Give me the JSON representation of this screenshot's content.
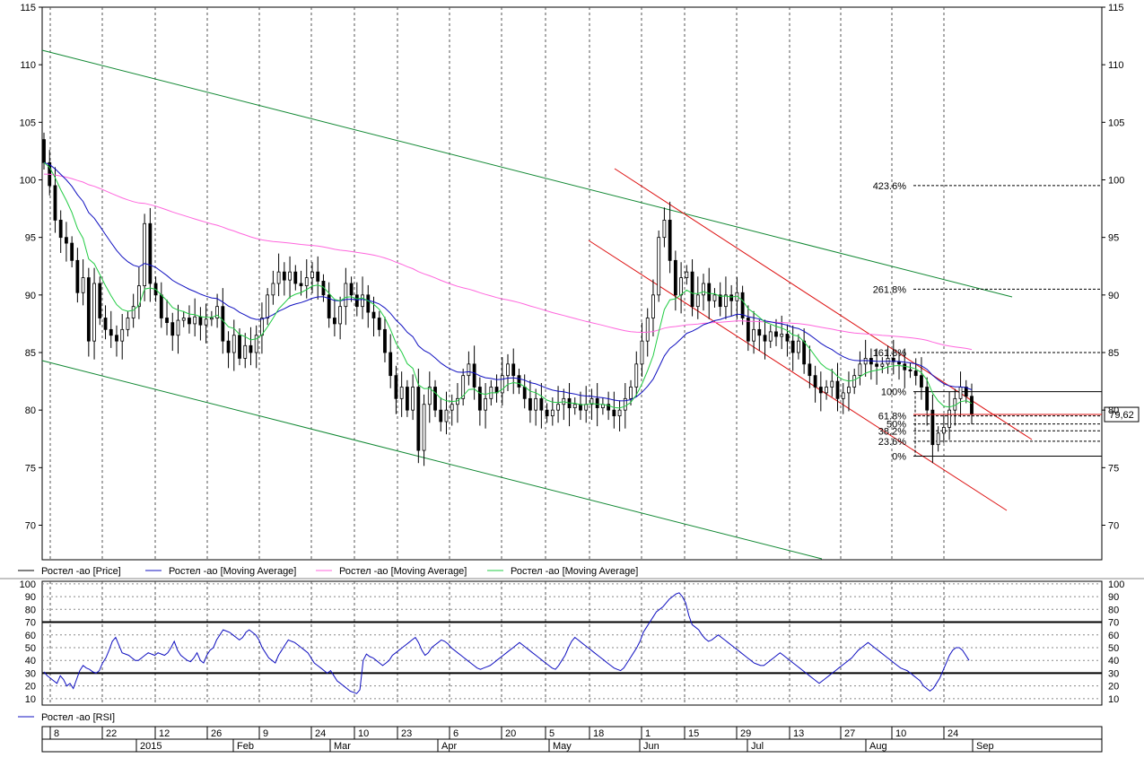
{
  "chart_data": [
    {
      "type": "candlestick",
      "title": "",
      "ylim": [
        67,
        115
      ],
      "y_ticks": [
        70,
        75,
        80,
        85,
        90,
        95,
        100,
        105,
        110,
        115
      ],
      "last_price_label": "79,62",
      "x_day_labels": [
        "8",
        "22",
        "12",
        "26",
        "9",
        "24",
        "10",
        "23",
        "6",
        "20",
        "5",
        "18",
        "1",
        "15",
        "29",
        "13",
        "27",
        "10",
        "24"
      ],
      "x_month_labels": [
        "2015",
        "Feb",
        "Mar",
        "Apr",
        "May",
        "Jun",
        "Jul",
        "Aug",
        "Sep"
      ],
      "legend": [
        {
          "name": "Ростел -ао [Price]",
          "color": "#000000"
        },
        {
          "name": "Ростел -ао [Moving Average]",
          "color": "#1010c0"
        },
        {
          "name": "Ростел -ао [Moving Average]",
          "color": "#ff66dd"
        },
        {
          "name": "Ростел -ао [Moving Average]",
          "color": "#22cc44"
        }
      ],
      "price_closes": [
        101.5,
        99.5,
        96.5,
        95,
        94.5,
        93,
        90.2,
        91.5,
        86,
        91,
        88,
        87,
        86.5,
        86,
        87,
        88,
        89,
        90.8,
        96.2,
        91,
        90,
        88,
        87.6,
        86.5,
        87.8,
        88,
        87.5,
        88.1,
        87.4,
        87.9,
        88,
        89,
        86,
        85,
        86.5,
        84.5,
        85.6,
        85,
        86.5,
        88,
        90,
        91,
        92,
        91.3,
        92,
        91,
        90.8,
        91.5,
        92,
        91.2,
        90,
        88,
        87.5,
        89,
        91,
        90,
        89,
        90,
        88.5,
        88,
        87,
        85,
        83,
        81,
        82,
        80,
        82,
        76.5,
        80.5,
        82,
        80,
        79,
        80,
        80.5,
        81,
        83,
        84,
        82,
        80,
        81,
        82,
        81.5,
        83,
        84,
        83,
        82,
        81,
        80,
        81,
        80,
        79.5,
        80,
        80.5,
        81,
        80.2,
        80.5,
        80,
        80.5,
        81,
        80.2,
        80.5,
        80,
        79.5,
        80,
        81,
        82,
        84,
        86,
        88,
        90,
        95,
        96.5,
        93,
        90,
        91.5,
        92,
        89,
        90,
        91,
        89.5,
        90,
        89,
        90,
        89.5,
        90.2,
        88,
        86,
        87,
        86.5,
        86,
        86.8,
        86.4,
        86.6,
        86,
        85,
        86,
        84,
        83,
        82,
        81.5,
        82,
        82.5,
        81,
        81.5,
        82,
        83,
        84,
        84.5,
        84,
        83.8,
        84,
        84.5,
        84.2,
        84,
        83.5,
        83.4,
        83,
        82,
        80,
        77,
        78,
        78.5,
        80,
        81,
        82,
        81.2,
        79.62
      ],
      "fibonacci_levels": [
        {
          "label": "423.6%",
          "value": 99.5
        },
        {
          "label": "261.8%",
          "value": 90.5
        },
        {
          "label": "161.8%",
          "value": 85
        },
        {
          "label": "100%",
          "value": 81.6
        },
        {
          "label": "61.8%",
          "value": 79.5
        },
        {
          "label": "50%",
          "value": 78.8
        },
        {
          "label": "38.2%",
          "value": 78.2
        },
        {
          "label": "23.6%",
          "value": 77.3
        },
        {
          "label": "0%",
          "value": 76
        }
      ]
    },
    {
      "type": "line",
      "title": "",
      "ylim": [
        5,
        102
      ],
      "y_ticks": [
        10,
        20,
        30,
        40,
        50,
        60,
        70,
        80,
        90,
        100
      ],
      "reference_lines": [
        30,
        70
      ],
      "legend": [
        {
          "name": "Ростел -ао [RSI]",
          "color": "#1010c0"
        }
      ],
      "rsi_values": [
        31,
        28,
        26,
        24,
        22,
        28,
        25,
        20,
        22,
        18,
        25,
        32,
        36,
        34,
        33,
        31,
        30,
        32,
        38,
        42,
        48,
        55,
        58,
        52,
        46,
        45,
        44,
        42,
        40,
        40,
        42,
        44,
        46,
        45,
        44,
        46,
        45,
        44,
        46,
        50,
        55,
        48,
        44,
        42,
        40,
        39,
        42,
        46,
        40,
        38,
        44,
        48,
        50,
        56,
        60,
        64,
        63,
        62,
        60,
        58,
        56,
        58,
        62,
        64,
        62,
        60,
        56,
        50,
        46,
        42,
        40,
        38,
        44,
        48,
        52,
        56,
        55,
        54,
        52,
        50,
        48,
        46,
        42,
        38,
        36,
        34,
        32,
        30,
        32,
        28,
        24,
        22,
        20,
        18,
        16,
        15,
        14,
        17,
        40,
        45,
        43,
        42,
        40,
        38,
        36,
        38,
        40,
        44,
        46,
        48,
        50,
        52,
        54,
        56,
        58,
        54,
        48,
        44,
        46,
        50,
        52,
        54,
        56,
        55,
        53,
        50,
        48,
        46,
        44,
        42,
        40,
        38,
        36,
        34,
        33,
        34,
        35,
        36,
        38,
        40,
        42,
        44,
        46,
        48,
        50,
        52,
        54,
        52,
        50,
        48,
        46,
        44,
        42,
        40,
        38,
        36,
        34,
        33,
        36,
        40,
        44,
        50,
        55,
        58,
        56,
        54,
        52,
        50,
        48,
        46,
        44,
        42,
        40,
        38,
        36,
        34,
        33,
        32,
        34,
        38,
        42,
        46,
        50,
        55,
        62,
        66,
        70,
        74,
        78,
        80,
        82,
        85,
        88,
        90,
        92,
        93,
        90,
        85,
        75,
        68,
        66,
        64,
        60,
        57,
        55,
        56,
        58,
        60,
        58,
        56,
        54,
        52,
        50,
        48,
        46,
        44,
        42,
        40,
        38,
        37,
        36,
        36,
        38,
        40,
        42,
        44,
        46,
        44,
        42,
        40,
        38,
        36,
        34,
        32,
        30,
        28,
        26,
        24,
        22,
        24,
        26,
        28,
        30,
        32,
        34,
        36,
        38,
        40,
        42,
        45,
        48,
        50,
        52,
        54,
        52,
        50,
        48,
        46,
        44,
        42,
        40,
        38,
        36,
        34,
        33,
        32,
        30,
        28,
        26,
        24,
        20,
        18,
        16,
        18,
        22,
        26,
        32,
        38,
        44,
        48,
        50,
        50,
        48,
        44,
        40
      ]
    }
  ]
}
